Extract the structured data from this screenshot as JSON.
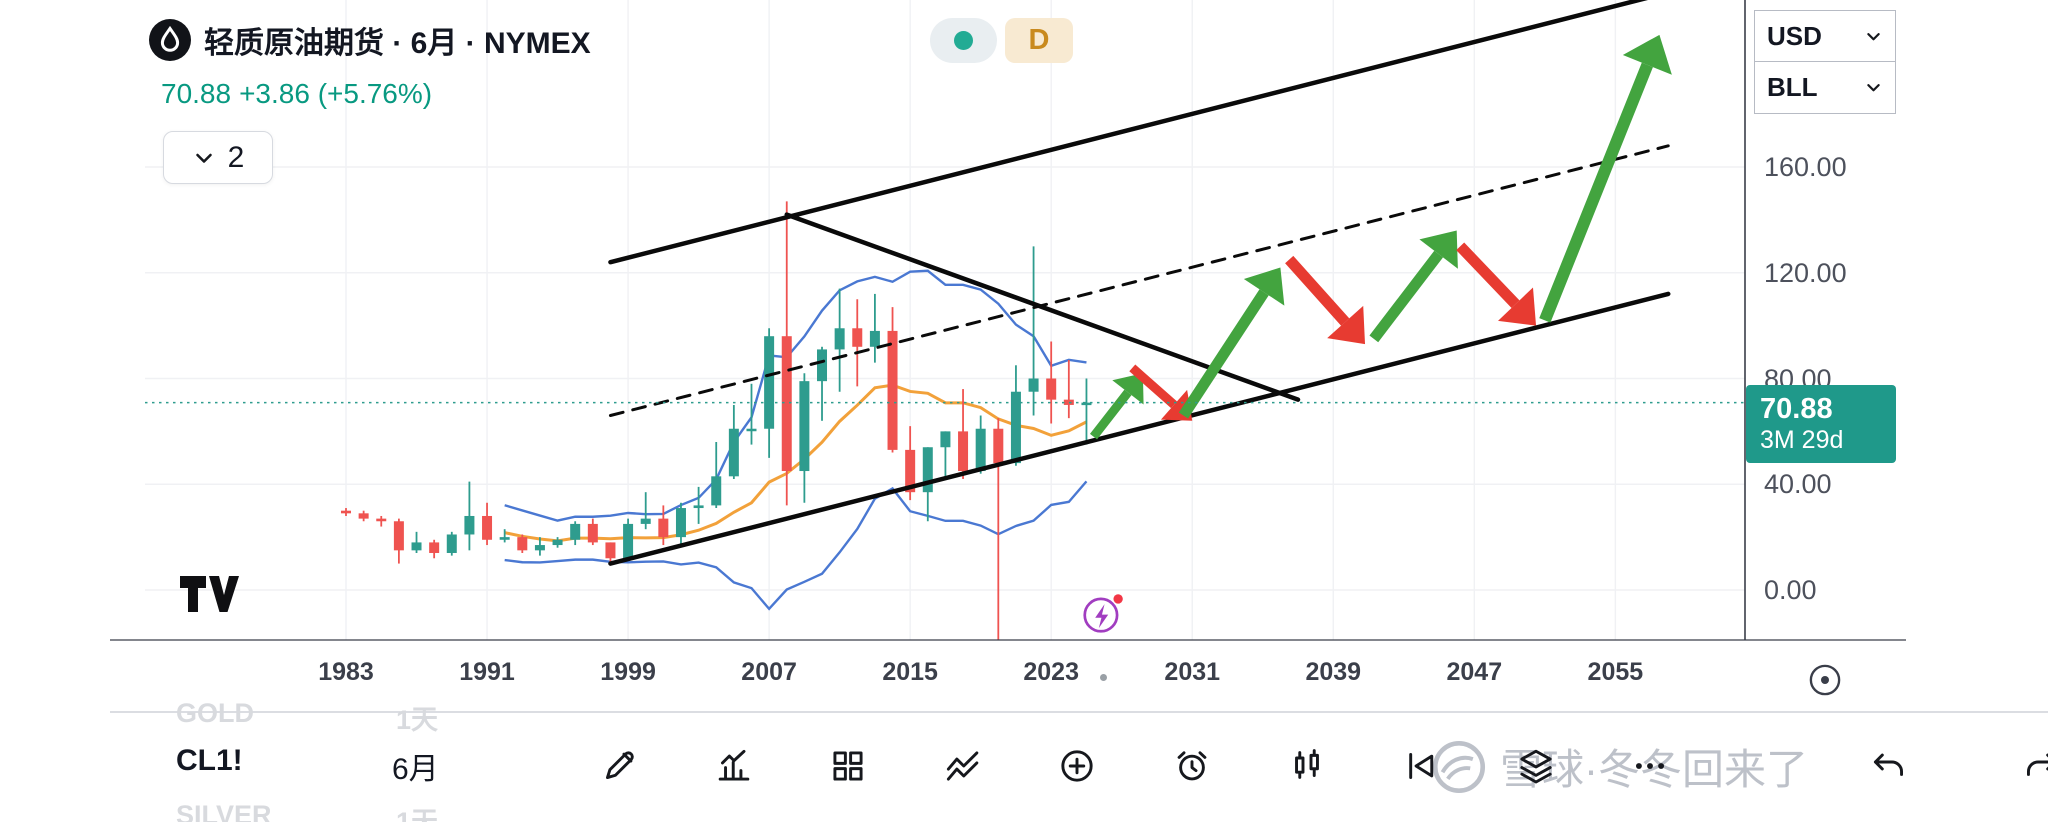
{
  "header": {
    "title": "轻质原油期货 · 6月 · NYMEX",
    "interval_badge": "D",
    "price": "70.88",
    "change": "+3.86 (+5.76%)",
    "drawings_count": "2"
  },
  "axis_panel": {
    "currency": "USD",
    "unit": "BLL"
  },
  "price_axis": {
    "labels": [
      "160.00",
      "120.00",
      "80.00",
      "40.00",
      "0.00"
    ],
    "values": [
      160,
      120,
      80,
      40,
      0
    ],
    "badge": {
      "price": "70.88",
      "countdown": "3M 29d"
    }
  },
  "time_axis": {
    "labels": [
      "1983",
      "1991",
      "1999",
      "2007",
      "2015",
      "2023",
      "2031",
      "2039",
      "2047",
      "2055"
    ],
    "values": [
      1983,
      1991,
      1999,
      2007,
      2015,
      2023,
      2031,
      2039,
      2047,
      2055
    ]
  },
  "toolbar": {
    "symbol": "CL1!",
    "interval": "6月",
    "icons": [
      {
        "name": "draw"
      },
      {
        "name": "indicators"
      },
      {
        "name": "grid-layout"
      },
      {
        "name": "line-tools"
      },
      {
        "name": "add"
      },
      {
        "name": "alert"
      },
      {
        "name": "candles"
      },
      {
        "name": "bar-replay"
      },
      {
        "name": "object-tree"
      },
      {
        "name": "more-options"
      }
    ],
    "right_icons": [
      {
        "name": "undo"
      },
      {
        "name": "redo"
      }
    ]
  },
  "watchlist": [
    {
      "symbol": "GOLD",
      "interval": "1天"
    },
    {
      "symbol": "SILVER",
      "interval": "1天"
    }
  ],
  "watermark": {
    "text": "雪球·冬冬回来了"
  },
  "colors": {
    "accent_teal": "#089981",
    "up": "#2e9c8e",
    "down": "#ef5350",
    "band": "#4a78d2",
    "ma": "#f2a13a",
    "arrow_up": "#43a43f",
    "arrow_down": "#e73b31",
    "drawing": "#0a0a0a",
    "badge_bg": "#1f998a",
    "interval_badge_fg": "#c98a1e",
    "interval_badge_bg": "#f8ead2",
    "status_dot": "#22ab94",
    "watermark_gray": "#bdc1c9",
    "ghost_gray": "#d8dade"
  },
  "chart_data": {
    "type": "candlestick",
    "title": "轻质原油期货 · 6月 · NYMEX",
    "x_unit": "year",
    "price_unit": "USD/BLL",
    "xlim": [
      1971.6,
      2062.3
    ],
    "ylim": [
      -18.9,
      223.1
    ],
    "grid": true,
    "candles": [
      [
        1983,
        30,
        31,
        28,
        29
      ],
      [
        1984,
        29,
        30,
        26,
        27
      ],
      [
        1985,
        27,
        28,
        24,
        26
      ],
      [
        1986,
        26,
        27,
        10,
        15
      ],
      [
        1987,
        15,
        22,
        14,
        18
      ],
      [
        1988,
        18,
        19,
        12,
        14
      ],
      [
        1989,
        14,
        22,
        13,
        21
      ],
      [
        1990,
        21,
        41,
        15,
        28
      ],
      [
        1991,
        28,
        33,
        17,
        19
      ],
      [
        1992,
        19,
        23,
        18,
        20
      ],
      [
        1993,
        20,
        21,
        14,
        15
      ],
      [
        1994,
        15,
        20,
        13,
        17
      ],
      [
        1995,
        17,
        20,
        16,
        19
      ],
      [
        1996,
        19,
        26,
        17,
        25
      ],
      [
        1997,
        25,
        27,
        17,
        18
      ],
      [
        1998,
        18,
        18,
        10,
        12
      ],
      [
        1999,
        12,
        27,
        11,
        25
      ],
      [
        2000,
        25,
        37,
        23,
        27
      ],
      [
        2001,
        27,
        32,
        17,
        20
      ],
      [
        2002,
        20,
        33,
        17,
        31
      ],
      [
        2003,
        31,
        39,
        25,
        32
      ],
      [
        2004,
        32,
        56,
        31,
        43
      ],
      [
        2005,
        43,
        70,
        42,
        61
      ],
      [
        2006,
        61,
        78,
        55,
        61
      ],
      [
        2007,
        61,
        99,
        50,
        96
      ],
      [
        2008,
        96,
        147,
        32,
        45
      ],
      [
        2009,
        45,
        82,
        33,
        79
      ],
      [
        2010,
        79,
        92,
        64,
        91
      ],
      [
        2011,
        91,
        114,
        75,
        99
      ],
      [
        2012,
        99,
        110,
        77,
        92
      ],
      [
        2013,
        92,
        112,
        86,
        98
      ],
      [
        2014,
        98,
        107,
        52,
        53
      ],
      [
        2015,
        53,
        62,
        34,
        37
      ],
      [
        2016,
        37,
        54,
        26,
        54
      ],
      [
        2017,
        54,
        60,
        42,
        60
      ],
      [
        2018,
        60,
        76,
        42,
        45
      ],
      [
        2019,
        45,
        66,
        44,
        61
      ],
      [
        2020,
        61,
        65,
        -40,
        48
      ],
      [
        2021,
        48,
        85,
        47,
        75
      ],
      [
        2022,
        75,
        130,
        66,
        80
      ],
      [
        2023,
        80,
        94,
        63,
        72
      ],
      [
        2024,
        72,
        87,
        65,
        70
      ],
      [
        2025,
        70,
        80,
        55,
        70.88
      ]
    ],
    "overlays": {
      "bollinger_period": 10,
      "bollinger_mult": 2
    },
    "annotations": {
      "channel": {
        "upper": [
          [
            1998,
            124
          ],
          [
            2058,
            226
          ]
        ],
        "lower": [
          [
            1998,
            10
          ],
          [
            2058,
            112
          ]
        ],
        "mid": [
          [
            1998,
            66
          ],
          [
            2058,
            168
          ]
        ]
      },
      "resistance": [
        [
          2008,
          142
        ],
        [
          2037,
          72
        ]
      ],
      "arrows": [
        {
          "from": [
            2025.4,
            58
          ],
          "to": [
            2028.2,
            82
          ],
          "color": "green",
          "w": 9
        },
        {
          "from": [
            2027.6,
            84
          ],
          "to": [
            2031,
            64
          ],
          "color": "red",
          "w": 9
        },
        {
          "from": [
            2030.5,
            66
          ],
          "to": [
            2036,
            122
          ],
          "color": "green",
          "w": 11
        },
        {
          "from": [
            2036.5,
            125
          ],
          "to": [
            2040.8,
            93
          ],
          "color": "red",
          "w": 11
        },
        {
          "from": [
            2041.3,
            95
          ],
          "to": [
            2046,
            136
          ],
          "color": "green",
          "w": 11
        },
        {
          "from": [
            2046.2,
            130
          ],
          "to": [
            2050.5,
            100
          ],
          "color": "red",
          "w": 11
        },
        {
          "from": [
            2051,
            102
          ],
          "to": [
            2057.5,
            210
          ],
          "color": "green",
          "w": 12
        }
      ],
      "price_line": 70.88
    }
  }
}
